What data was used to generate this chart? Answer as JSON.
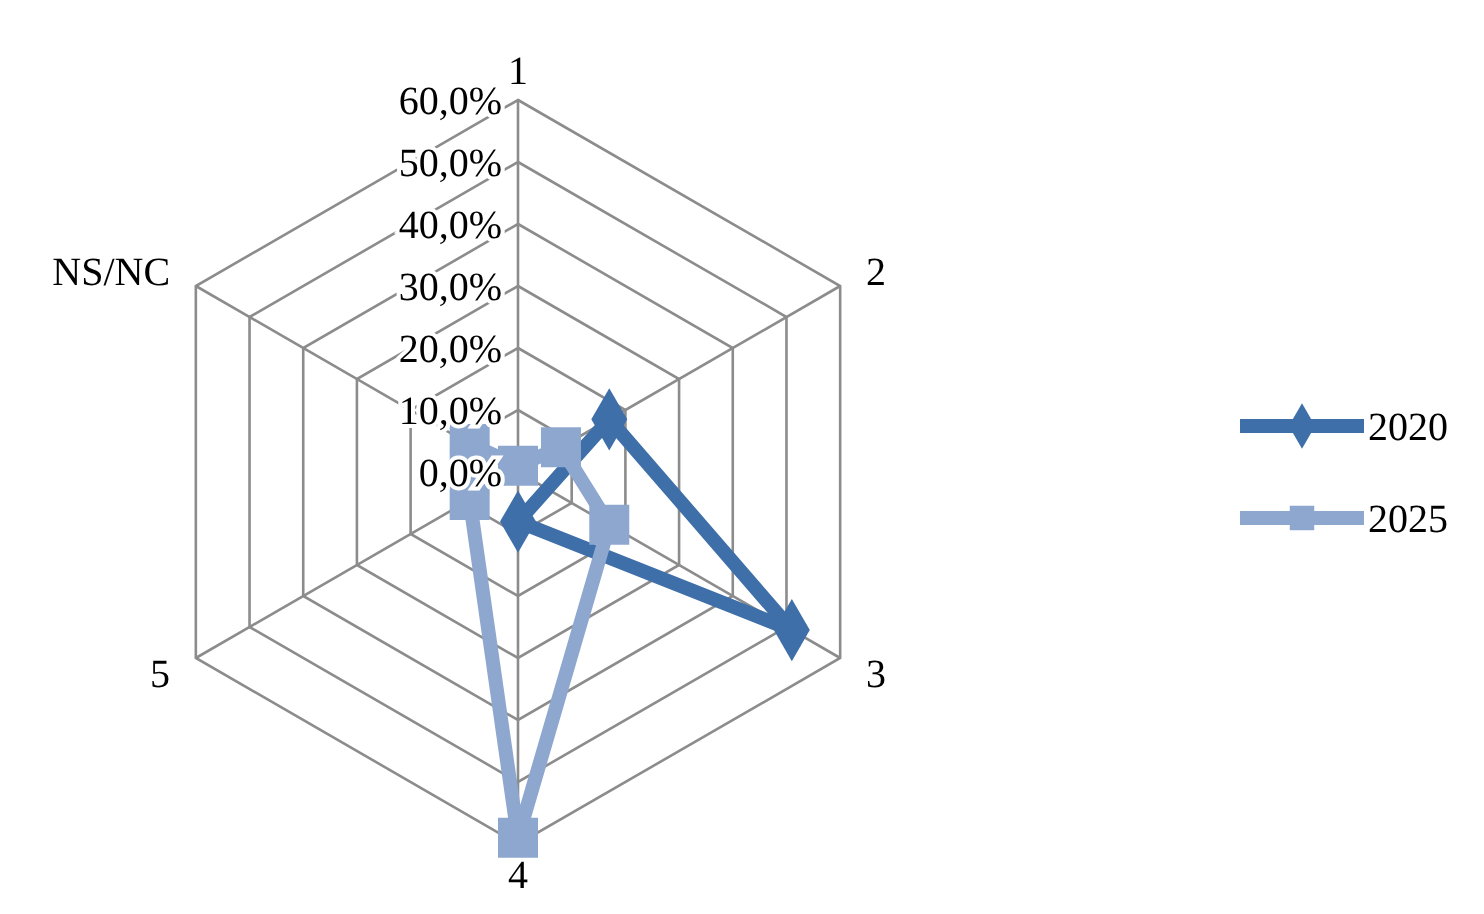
{
  "chart_data": {
    "type": "radar",
    "categories": [
      "1",
      "2",
      "3",
      "4",
      "5",
      "NS/NC"
    ],
    "series": [
      {
        "name": "2020",
        "color": "#3f6fa8",
        "marker": "diamond",
        "values": [
          null,
          17,
          51,
          8,
          null,
          null
        ]
      },
      {
        "name": "2025",
        "color": "#8ea7cf",
        "marker": "square",
        "values": [
          1,
          8,
          17,
          59,
          9,
          9
        ]
      }
    ],
    "ylim": [
      0,
      60
    ],
    "yticks": [
      {
        "value": 0,
        "label": "0,0%"
      },
      {
        "value": 10,
        "label": "10,0%"
      },
      {
        "value": 20,
        "label": "20,0%"
      },
      {
        "value": 30,
        "label": "30,0%"
      },
      {
        "value": 40,
        "label": "40,0%"
      },
      {
        "value": 50,
        "label": "50,0%"
      },
      {
        "value": 60,
        "label": "60,0%"
      }
    ],
    "grid": true,
    "legend": "right"
  }
}
